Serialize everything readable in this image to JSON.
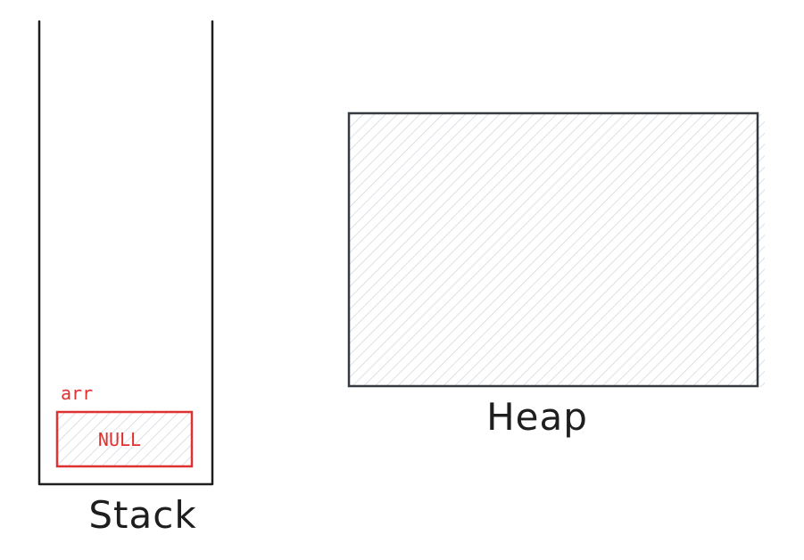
{
  "stack": {
    "label": "Stack",
    "variable": {
      "name": "arr",
      "value": "NULL"
    }
  },
  "heap": {
    "label": "Heap"
  },
  "colors": {
    "stroke": "#1e1e1e",
    "heap_border": "#343a40",
    "hatch": "#ced4da",
    "variable": "#e03131"
  }
}
